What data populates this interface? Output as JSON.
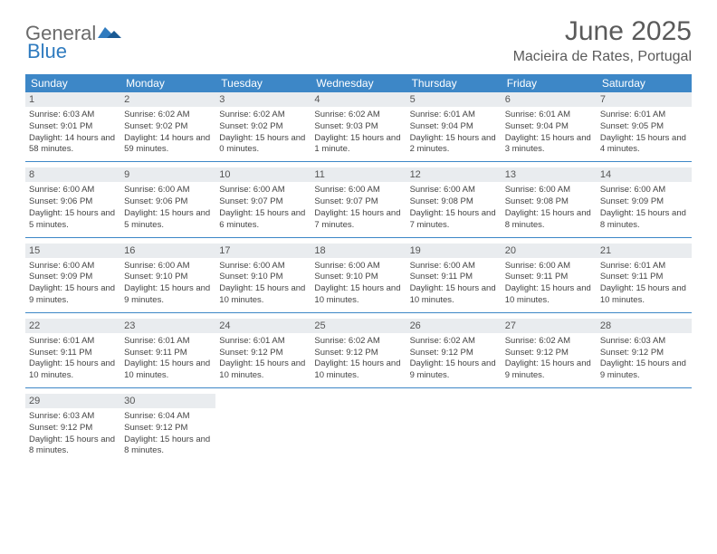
{
  "brand": {
    "part1": "General",
    "part2": "Blue"
  },
  "title": "June 2025",
  "location": "Macieira de Rates, Portugal",
  "header_bg": "#3d87c7",
  "weekdays": [
    "Sunday",
    "Monday",
    "Tuesday",
    "Wednesday",
    "Thursday",
    "Friday",
    "Saturday"
  ],
  "weeks": [
    [
      {
        "n": "1",
        "sr": "6:03 AM",
        "ss": "9:01 PM",
        "dl": "14 hours and 58 minutes."
      },
      {
        "n": "2",
        "sr": "6:02 AM",
        "ss": "9:02 PM",
        "dl": "14 hours and 59 minutes."
      },
      {
        "n": "3",
        "sr": "6:02 AM",
        "ss": "9:02 PM",
        "dl": "15 hours and 0 minutes."
      },
      {
        "n": "4",
        "sr": "6:02 AM",
        "ss": "9:03 PM",
        "dl": "15 hours and 1 minute."
      },
      {
        "n": "5",
        "sr": "6:01 AM",
        "ss": "9:04 PM",
        "dl": "15 hours and 2 minutes."
      },
      {
        "n": "6",
        "sr": "6:01 AM",
        "ss": "9:04 PM",
        "dl": "15 hours and 3 minutes."
      },
      {
        "n": "7",
        "sr": "6:01 AM",
        "ss": "9:05 PM",
        "dl": "15 hours and 4 minutes."
      }
    ],
    [
      {
        "n": "8",
        "sr": "6:00 AM",
        "ss": "9:06 PM",
        "dl": "15 hours and 5 minutes."
      },
      {
        "n": "9",
        "sr": "6:00 AM",
        "ss": "9:06 PM",
        "dl": "15 hours and 5 minutes."
      },
      {
        "n": "10",
        "sr": "6:00 AM",
        "ss": "9:07 PM",
        "dl": "15 hours and 6 minutes."
      },
      {
        "n": "11",
        "sr": "6:00 AM",
        "ss": "9:07 PM",
        "dl": "15 hours and 7 minutes."
      },
      {
        "n": "12",
        "sr": "6:00 AM",
        "ss": "9:08 PM",
        "dl": "15 hours and 7 minutes."
      },
      {
        "n": "13",
        "sr": "6:00 AM",
        "ss": "9:08 PM",
        "dl": "15 hours and 8 minutes."
      },
      {
        "n": "14",
        "sr": "6:00 AM",
        "ss": "9:09 PM",
        "dl": "15 hours and 8 minutes."
      }
    ],
    [
      {
        "n": "15",
        "sr": "6:00 AM",
        "ss": "9:09 PM",
        "dl": "15 hours and 9 minutes."
      },
      {
        "n": "16",
        "sr": "6:00 AM",
        "ss": "9:10 PM",
        "dl": "15 hours and 9 minutes."
      },
      {
        "n": "17",
        "sr": "6:00 AM",
        "ss": "9:10 PM",
        "dl": "15 hours and 10 minutes."
      },
      {
        "n": "18",
        "sr": "6:00 AM",
        "ss": "9:10 PM",
        "dl": "15 hours and 10 minutes."
      },
      {
        "n": "19",
        "sr": "6:00 AM",
        "ss": "9:11 PM",
        "dl": "15 hours and 10 minutes."
      },
      {
        "n": "20",
        "sr": "6:00 AM",
        "ss": "9:11 PM",
        "dl": "15 hours and 10 minutes."
      },
      {
        "n": "21",
        "sr": "6:01 AM",
        "ss": "9:11 PM",
        "dl": "15 hours and 10 minutes."
      }
    ],
    [
      {
        "n": "22",
        "sr": "6:01 AM",
        "ss": "9:11 PM",
        "dl": "15 hours and 10 minutes."
      },
      {
        "n": "23",
        "sr": "6:01 AM",
        "ss": "9:11 PM",
        "dl": "15 hours and 10 minutes."
      },
      {
        "n": "24",
        "sr": "6:01 AM",
        "ss": "9:12 PM",
        "dl": "15 hours and 10 minutes."
      },
      {
        "n": "25",
        "sr": "6:02 AM",
        "ss": "9:12 PM",
        "dl": "15 hours and 10 minutes."
      },
      {
        "n": "26",
        "sr": "6:02 AM",
        "ss": "9:12 PM",
        "dl": "15 hours and 9 minutes."
      },
      {
        "n": "27",
        "sr": "6:02 AM",
        "ss": "9:12 PM",
        "dl": "15 hours and 9 minutes."
      },
      {
        "n": "28",
        "sr": "6:03 AM",
        "ss": "9:12 PM",
        "dl": "15 hours and 9 minutes."
      }
    ],
    [
      {
        "n": "29",
        "sr": "6:03 AM",
        "ss": "9:12 PM",
        "dl": "15 hours and 8 minutes."
      },
      {
        "n": "30",
        "sr": "6:04 AM",
        "ss": "9:12 PM",
        "dl": "15 hours and 8 minutes."
      },
      null,
      null,
      null,
      null,
      null
    ]
  ],
  "labels": {
    "sunrise": "Sunrise:",
    "sunset": "Sunset:",
    "daylight": "Daylight:"
  }
}
